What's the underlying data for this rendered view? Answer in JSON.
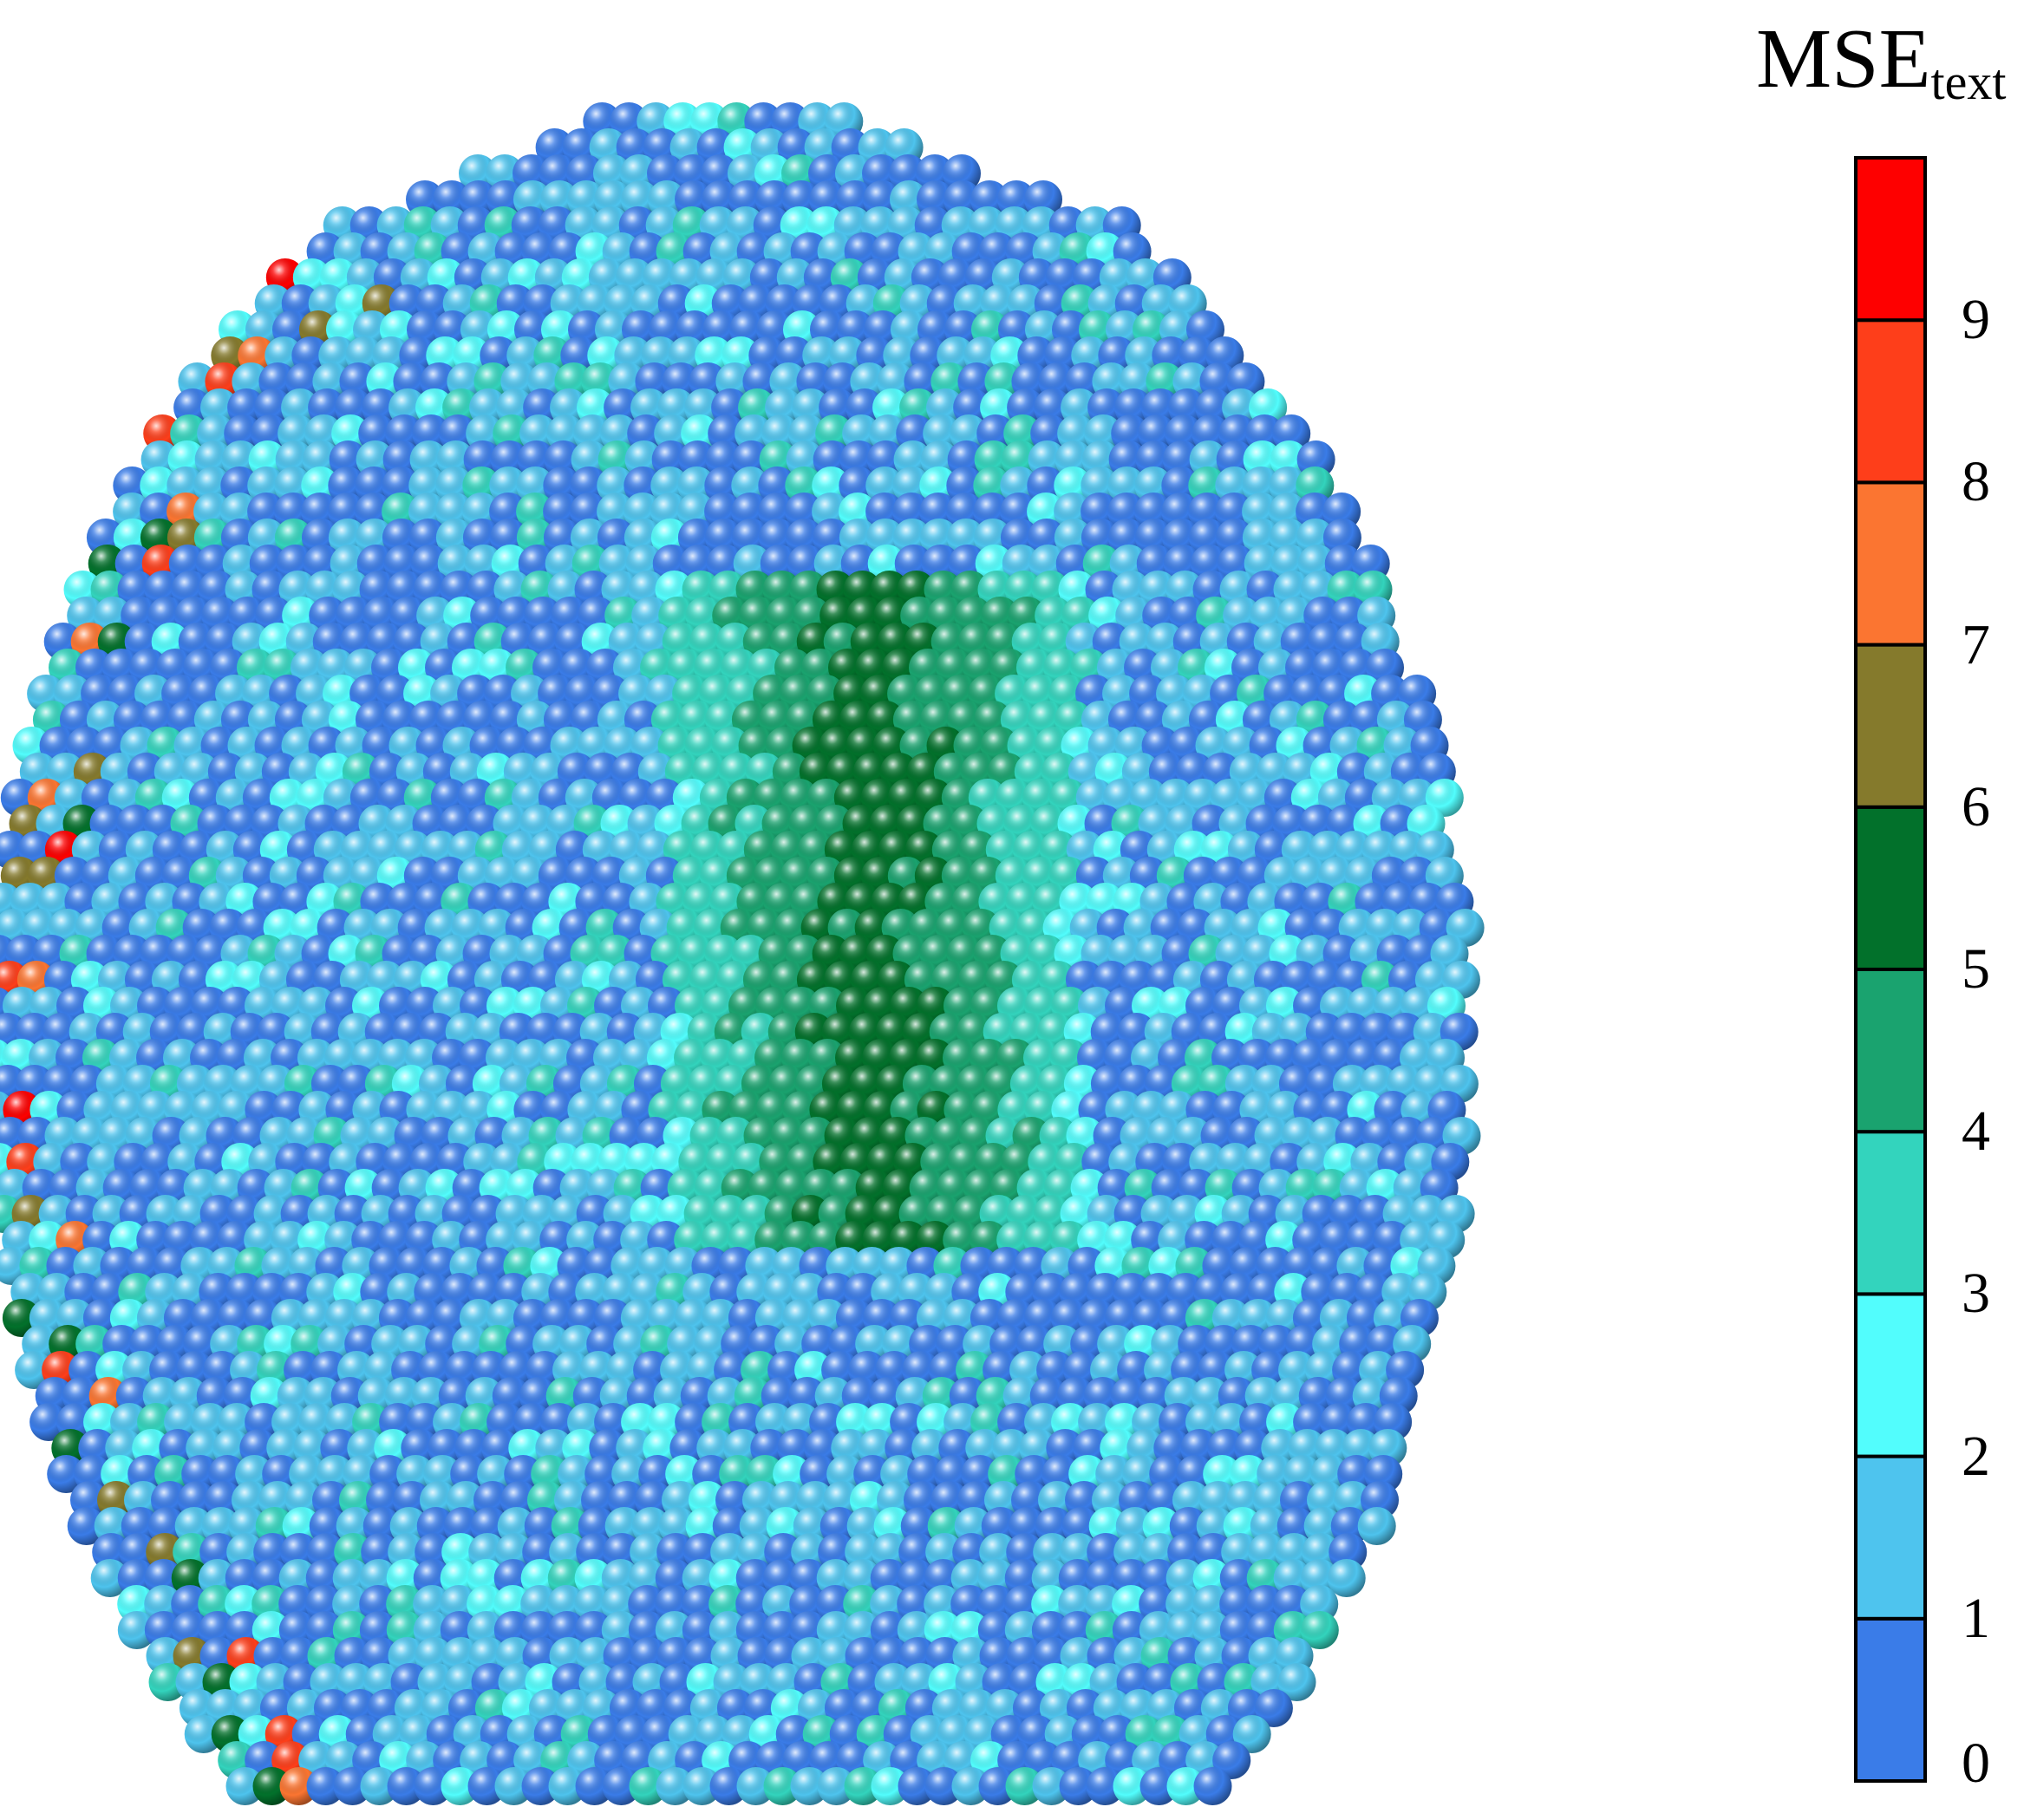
{
  "chart_data": {
    "type": "scatter",
    "subtype": "3d-particle-cluster",
    "title": "",
    "colorbar": {
      "title": "MSE",
      "title_sub": "text",
      "ticks": [
        "0",
        "1",
        "2",
        "3",
        "4",
        "5",
        "6",
        "7",
        "8",
        "9"
      ],
      "range": [
        0,
        10
      ],
      "bins": [
        {
          "from": 0,
          "to": 1,
          "color": "#3a7ce8"
        },
        {
          "from": 1,
          "to": 2,
          "color": "#4ec4ee"
        },
        {
          "from": 2,
          "to": 3,
          "color": "#52fdfd"
        },
        {
          "from": 3,
          "to": 4,
          "color": "#33d4bd"
        },
        {
          "from": 4,
          "to": 5,
          "color": "#1aa36f"
        },
        {
          "from": 5,
          "to": 6,
          "color": "#02712b"
        },
        {
          "from": 6,
          "to": 7,
          "color": "#857a2c"
        },
        {
          "from": 7,
          "to": 8,
          "color": "#fb7531"
        },
        {
          "from": 8,
          "to": 9,
          "color": "#fe3e1a"
        },
        {
          "from": 9,
          "to": 10,
          "color": "#fe0000"
        }
      ]
    },
    "regions": [
      {
        "name": "outer-shell",
        "dominant_mse": [
          0,
          2
        ]
      },
      {
        "name": "central-band",
        "dominant_mse": [
          3,
          5
        ]
      },
      {
        "name": "left-edge",
        "dominant_mse": [
          0,
          9
        ]
      }
    ],
    "outlier_mse_values": [
      9.5,
      8.4,
      8.2,
      8.1,
      7.6,
      7.5,
      7.4,
      7.3,
      7.2,
      6.6,
      6.5,
      6.4,
      6.3,
      6.2,
      6.1,
      5.6,
      5.5,
      5.4,
      5.3
    ]
  }
}
